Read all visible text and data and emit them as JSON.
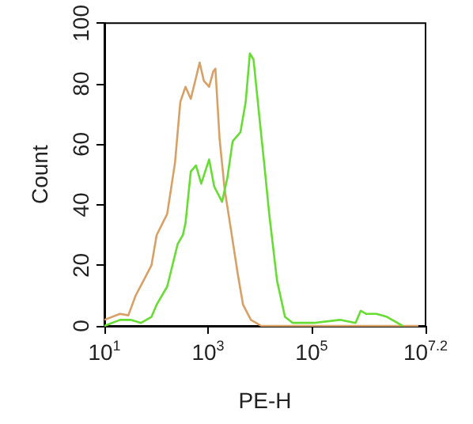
{
  "chart_data": {
    "type": "line",
    "xlabel": "PE-H",
    "ylabel": "Count",
    "log": "x",
    "marker": "none",
    "xlim": [
      10,
      15848932
    ],
    "xticks": [
      {
        "value": 10,
        "label": "10$^{1}$"
      },
      {
        "value": 1000,
        "label": "10$^{3}$"
      },
      {
        "value": 100000,
        "label": "10$^{5}$"
      },
      {
        "value": 15848932,
        "label": "10$^{7.2}$"
      }
    ],
    "ylim": [
      0,
      100
    ],
    "yticks": [
      0,
      20,
      40,
      60,
      80,
      100
    ],
    "series": [
      {
        "color": "#d9a066",
        "x": [
          10,
          20,
          29,
          40,
          57,
          81,
          102,
          163,
          231,
          292,
          368,
          465,
          586,
          689,
          830,
          1050,
          1260,
          1390,
          1670,
          2100,
          2650,
          3770,
          4750,
          6730,
          10700,
          110000,
          1150000,
          11500000
        ],
        "values": [
          2,
          4,
          3.5,
          10,
          15,
          20,
          30,
          37,
          54,
          74,
          79,
          75,
          82,
          87,
          81,
          79,
          84,
          85,
          62,
          45,
          34,
          17,
          7,
          2,
          0,
          0,
          0,
          0
        ]
      },
      {
        "color": "#66dd33",
        "x": [
          10,
          20,
          32,
          51,
          81,
          102,
          163,
          259,
          327,
          368,
          465,
          586,
          740,
          1050,
          1320,
          1870,
          2370,
          2990,
          4230,
          5340,
          6430,
          7570,
          9550,
          12100,
          15200,
          21500,
          30600,
          43300,
          110000,
          351000,
          705000,
          889000,
          1120000,
          1790000,
          2850000,
          4540000,
          5730000
        ],
        "values": [
          0,
          2,
          2,
          1,
          3,
          7,
          13,
          27,
          30,
          34,
          51,
          53,
          47,
          55,
          46,
          41,
          49,
          61,
          64,
          74,
          90,
          88,
          71,
          54,
          37,
          15,
          3,
          1,
          1,
          2,
          1,
          5,
          4,
          4,
          3,
          1,
          0
        ]
      }
    ]
  }
}
